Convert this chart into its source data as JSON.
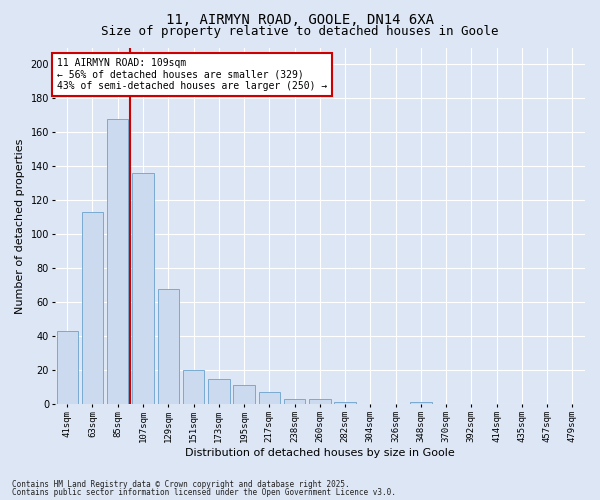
{
  "title_line1": "11, AIRMYN ROAD, GOOLE, DN14 6XA",
  "title_line2": "Size of property relative to detached houses in Goole",
  "xlabel": "Distribution of detached houses by size in Goole",
  "ylabel": "Number of detached properties",
  "categories": [
    "41sqm",
    "63sqm",
    "85sqm",
    "107sqm",
    "129sqm",
    "151sqm",
    "173sqm",
    "195sqm",
    "217sqm",
    "238sqm",
    "260sqm",
    "282sqm",
    "304sqm",
    "326sqm",
    "348sqm",
    "370sqm",
    "392sqm",
    "414sqm",
    "435sqm",
    "457sqm",
    "479sqm"
  ],
  "values": [
    43,
    113,
    168,
    136,
    68,
    20,
    15,
    11,
    7,
    3,
    3,
    1,
    0,
    0,
    1,
    0,
    0,
    0,
    0,
    0,
    0
  ],
  "bar_color": "#ccdaf0",
  "bar_edge_color": "#7aaad0",
  "vline_x": 2.5,
  "vline_color": "#cc0000",
  "annotation_text": "11 AIRMYN ROAD: 109sqm\n← 56% of detached houses are smaller (329)\n43% of semi-detached houses are larger (250) →",
  "annotation_box_facecolor": "#ffffff",
  "annotation_box_edgecolor": "#cc0000",
  "ylim": [
    0,
    210
  ],
  "yticks": [
    0,
    20,
    40,
    60,
    80,
    100,
    120,
    140,
    160,
    180,
    200
  ],
  "bg_color": "#dce6f5",
  "footer_line1": "Contains HM Land Registry data © Crown copyright and database right 2025.",
  "footer_line2": "Contains public sector information licensed under the Open Government Licence v3.0.",
  "title_fontsize": 10,
  "subtitle_fontsize": 9,
  "tick_fontsize": 6.5,
  "label_fontsize": 8,
  "annotation_fontsize": 7,
  "footer_fontsize": 5.5
}
